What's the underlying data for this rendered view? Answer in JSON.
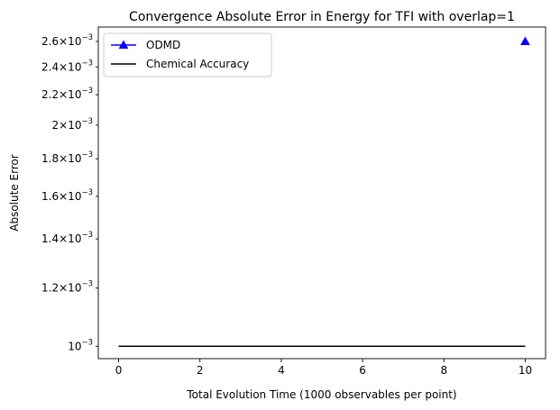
{
  "chart_data": {
    "type": "line",
    "title": "Convergence Absolute Error in Energy for TFI with overlap=1",
    "xlabel": "Total Evolution Time (1000 observables per point)",
    "ylabel": "Absolute Error",
    "y_scale": "log",
    "xlim": [
      -0.5,
      10.5
    ],
    "ylim": [
      0.000962,
      0.00272
    ],
    "x_ticks": [
      {
        "value": 0,
        "label": "0"
      },
      {
        "value": 2,
        "label": "2"
      },
      {
        "value": 4,
        "label": "4"
      },
      {
        "value": 6,
        "label": "6"
      },
      {
        "value": 8,
        "label": "8"
      },
      {
        "value": 10,
        "label": "10"
      }
    ],
    "y_ticks": [
      {
        "value": 0.001,
        "mantissa": "",
        "exponent": "−3",
        "base": "10"
      },
      {
        "value": 0.0012,
        "mantissa": "1.2",
        "exponent": "−3",
        "base": "10"
      },
      {
        "value": 0.0014,
        "mantissa": "1.4",
        "exponent": "−3",
        "base": "10"
      },
      {
        "value": 0.0016,
        "mantissa": "1.6",
        "exponent": "−3",
        "base": "10"
      },
      {
        "value": 0.0018,
        "mantissa": "1.8",
        "exponent": "−3",
        "base": "10"
      },
      {
        "value": 0.002,
        "mantissa": "2",
        "exponent": "−3",
        "base": "10"
      },
      {
        "value": 0.0022,
        "mantissa": "2.2",
        "exponent": "−3",
        "base": "10"
      },
      {
        "value": 0.0024,
        "mantissa": "2.4",
        "exponent": "−3",
        "base": "10"
      },
      {
        "value": 0.0026,
        "mantissa": "2.6",
        "exponent": "−3",
        "base": "10"
      }
    ],
    "series": [
      {
        "name": "ODMD",
        "color": "#0000ff",
        "marker": "triangle-up",
        "x": [
          10
        ],
        "y": [
          0.0026
        ]
      },
      {
        "name": "Chemical Accuracy",
        "color": "#000000",
        "marker": "none",
        "x": [
          0,
          10
        ],
        "y": [
          0.001,
          0.001
        ]
      }
    ],
    "legend_position": "upper-left",
    "grid": false
  }
}
